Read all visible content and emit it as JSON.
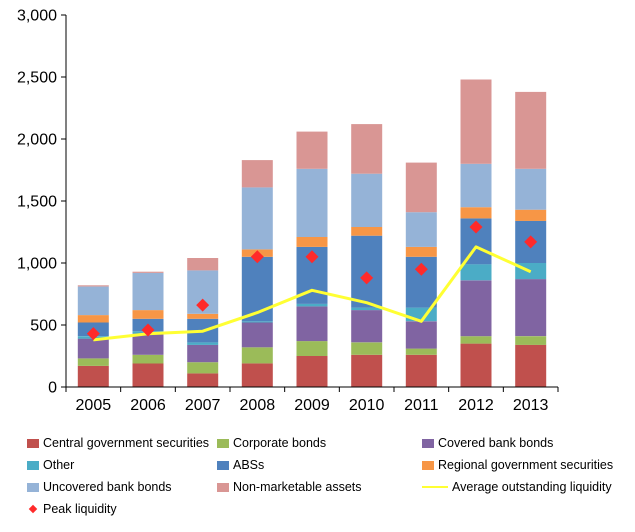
{
  "chart_data": {
    "type": "bar",
    "stacked": true,
    "categories": [
      "2005",
      "2006",
      "2007",
      "2008",
      "2009",
      "2010",
      "2011",
      "2012",
      "2013"
    ],
    "ylim": [
      0,
      3000
    ],
    "yticks": [
      0,
      500,
      1000,
      1500,
      2000,
      2500,
      3000
    ],
    "ytick_labels": [
      "0",
      "500",
      "1,000",
      "1,500",
      "2,000",
      "2,500",
      "3,000"
    ],
    "grid": false,
    "legend_position": "bottom",
    "series": [
      {
        "name": "Central government securities",
        "color": "#c0504d",
        "values": [
          170,
          190,
          110,
          190,
          250,
          260,
          260,
          350,
          340
        ]
      },
      {
        "name": "Corporate bonds",
        "color": "#9bbb59",
        "values": [
          60,
          70,
          90,
          130,
          120,
          100,
          50,
          60,
          70
        ]
      },
      {
        "name": "Covered bank bonds",
        "color": "#8064a2",
        "values": [
          160,
          170,
          140,
          200,
          280,
          260,
          220,
          450,
          460
        ]
      },
      {
        "name": "Other",
        "color": "#4bacc6",
        "values": [
          20,
          20,
          20,
          10,
          20,
          20,
          110,
          130,
          130
        ]
      },
      {
        "name": "ABSs",
        "color": "#4f81bd",
        "values": [
          110,
          100,
          190,
          520,
          460,
          580,
          410,
          370,
          340
        ]
      },
      {
        "name": "Regional government securities",
        "color": "#f79646",
        "values": [
          60,
          70,
          40,
          60,
          80,
          70,
          80,
          90,
          90
        ]
      },
      {
        "name": "Uncovered bank bonds",
        "color": "#95b3d7",
        "values": [
          230,
          300,
          350,
          500,
          550,
          430,
          280,
          350,
          330
        ]
      },
      {
        "name": "Non-marketable assets",
        "color": "#d99694",
        "values": [
          10,
          10,
          100,
          220,
          300,
          400,
          400,
          680,
          620
        ]
      }
    ],
    "line_series": {
      "name": "Average outstanding liquidity",
      "color": "#ffff33",
      "values": [
        380,
        430,
        450,
        600,
        780,
        680,
        530,
        1130,
        930
      ]
    },
    "point_series": {
      "name": "Peak liquidity",
      "color": "#ff2a2a",
      "values": [
        430,
        460,
        660,
        1050,
        1050,
        880,
        950,
        1290,
        1170
      ]
    }
  }
}
